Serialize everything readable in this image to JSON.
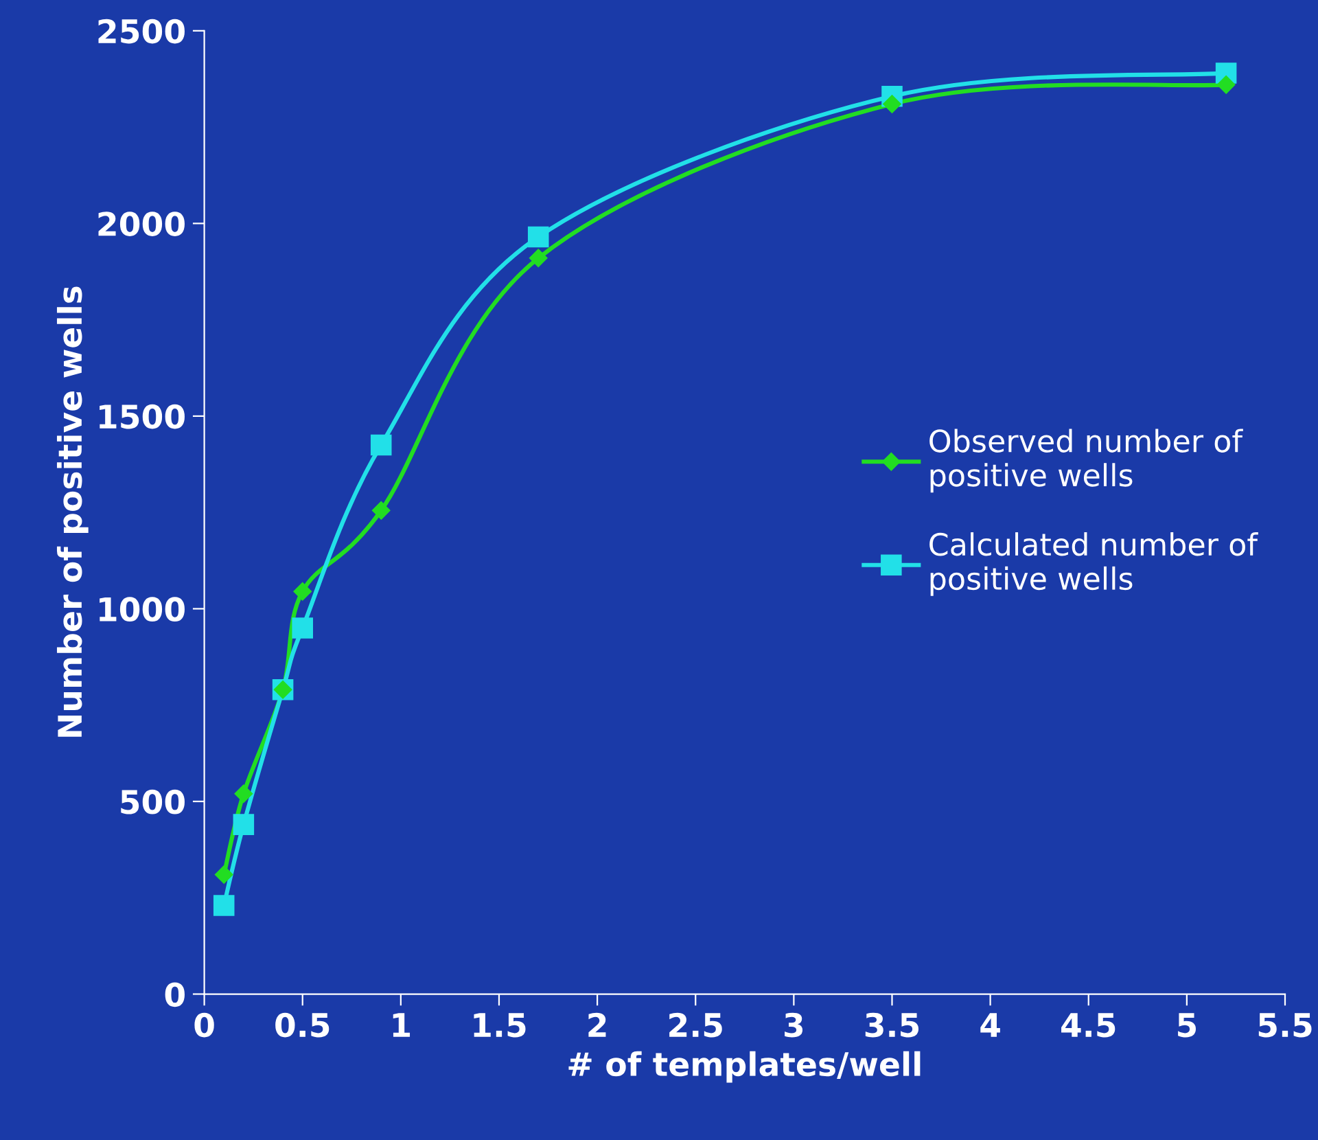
{
  "chart_data": {
    "type": "line",
    "xlabel": "# of templates/well",
    "ylabel": "Number of positive wells",
    "xlim": [
      0,
      5.5
    ],
    "xticks": [
      0,
      0.5,
      1,
      1.5,
      2,
      2.5,
      3,
      3.5,
      4,
      4.5,
      5,
      5.5
    ],
    "ylim": [
      0,
      2500
    ],
    "yticks": [
      0,
      500,
      1000,
      1500,
      2000,
      2500
    ],
    "grid": false,
    "legend": "right",
    "line_style": "solid",
    "series": [
      {
        "name": "Observed number of\npositive wells",
        "color": "#22dd22",
        "marker": "diamond",
        "x": [
          0.1,
          0.2,
          0.4,
          0.5,
          0.9,
          1.7,
          3.5,
          5.2
        ],
        "values": [
          310,
          520,
          790,
          1045,
          1255,
          1910,
          2310,
          2360
        ]
      },
      {
        "name": "Calculated number of\npositive wells",
        "color": "#22e0e8",
        "marker": "square",
        "x": [
          0.1,
          0.2,
          0.4,
          0.5,
          0.9,
          1.7,
          3.5,
          5.2
        ],
        "values": [
          230,
          440,
          790,
          950,
          1425,
          1965,
          2330,
          2390
        ]
      }
    ]
  }
}
